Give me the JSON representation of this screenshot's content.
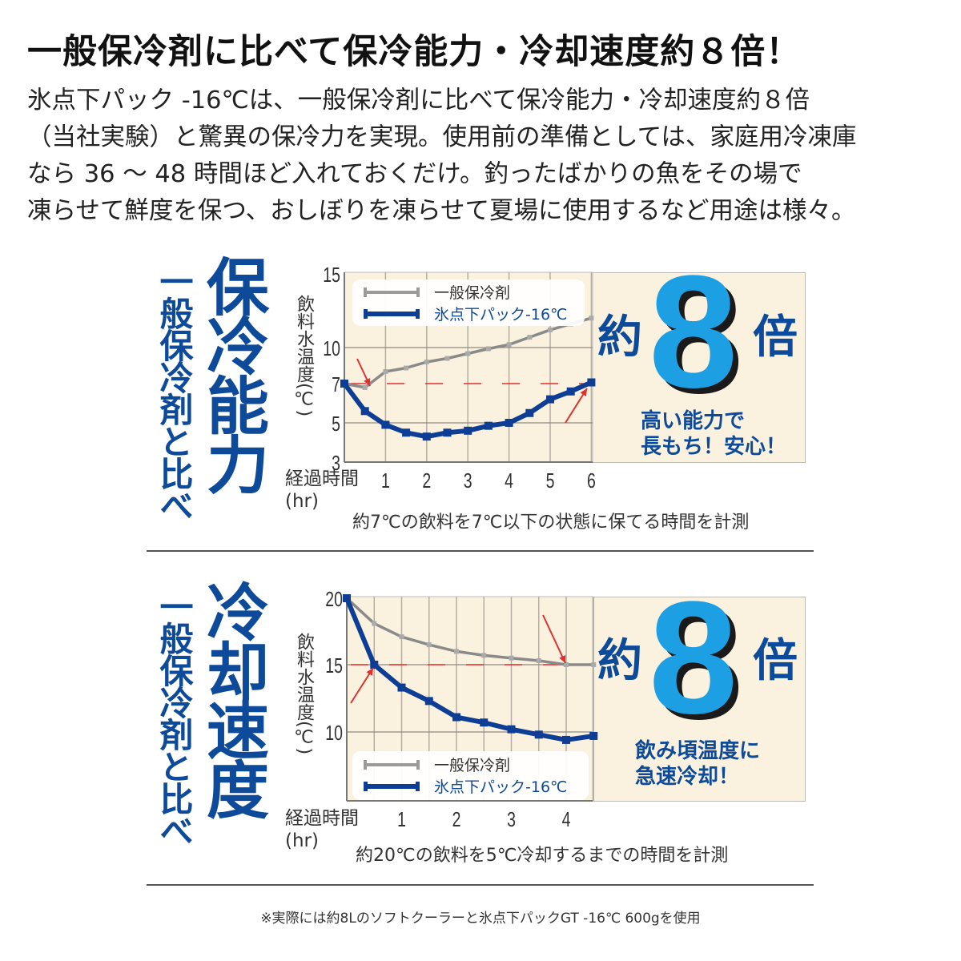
{
  "header": {
    "title": "一般保冷剤に比べて保冷能力・冷却速度約８倍！",
    "paragraph": [
      "氷点下パック -16℃は、一般保冷剤に比べて保冷能力・冷却速度約８倍",
      "（当社実験）と驚異の保冷力を実現。使用前の準備としては、家庭用冷凍庫",
      "なら 36 ～ 48 時間ほど入れておくだけ。釣ったばかりの魚をその場で",
      "凍らせて鮮度を保つ、おしぼりを凍らせて夏場に使用するなど用途は様々。"
    ]
  },
  "sections": [
    {
      "title": "保冷能力",
      "subtitle": "一般保冷剤と比べ",
      "badge": {
        "prefix": "約",
        "number": "8",
        "suffix": "倍",
        "caption": [
          "高い能力で",
          "長もち！安心！"
        ]
      },
      "ylabel": "飲料水温度(℃)",
      "xlabel": "経過時間",
      "xunit": "(hr)",
      "caption": "約7℃の飲料を7℃以下の状態に保てる時間を計測",
      "legend": [
        "一般保冷剤",
        "氷点下パック-16℃"
      ]
    },
    {
      "title": "冷却速度",
      "subtitle": "一般保冷剤と比べ",
      "badge": {
        "prefix": "約",
        "number": "8",
        "suffix": "倍",
        "caption": [
          "飲み頃温度に",
          "急速冷却！"
        ]
      },
      "ylabel": "飲料水温度(℃)",
      "xlabel": "経過時間",
      "xunit": "(hr)",
      "caption": "約20℃の飲料を5℃冷却するまでの時間を計測",
      "legend": [
        "一般保冷剤",
        "氷点下パック-16℃"
      ]
    }
  ],
  "footnote": "※実際には約8Lのソフトクーラーと氷点下パックGT -16℃ 600gを使用",
  "colors": {
    "gray_series": "#8a8a8a",
    "blue_series": "#0d3d94",
    "threshold": "#e03030",
    "panel": "#fbf1df",
    "accent": "#1d9fe3",
    "navy": "#0d4a9a"
  },
  "chart_data": [
    {
      "type": "line",
      "title": "保冷能力",
      "xlabel": "経過時間 (hr)",
      "ylabel": "飲料水温度(℃)",
      "x": [
        0,
        0.5,
        1,
        1.5,
        2,
        2.5,
        3,
        3.5,
        4,
        4.5,
        5,
        5.5,
        6
      ],
      "xticks": [
        1,
        2,
        3,
        4,
        5,
        6
      ],
      "yticks": [
        3,
        5,
        7,
        10,
        15
      ],
      "ylim": [
        3,
        15
      ],
      "xlim": [
        0,
        6
      ],
      "threshold": 7,
      "series": [
        {
          "name": "一般保冷剤",
          "values": [
            7,
            6.8,
            8.0,
            8.3,
            8.8,
            9.1,
            9.5,
            9.9,
            10.2,
            10.7,
            11.2,
            11.6,
            12.0
          ]
        },
        {
          "name": "氷点下パック-16℃",
          "values": [
            7,
            5.6,
            4.9,
            4.5,
            4.3,
            4.5,
            4.6,
            4.85,
            5.0,
            5.5,
            6.2,
            6.6,
            7.1
          ]
        }
      ],
      "legend": "top-left"
    },
    {
      "type": "line",
      "title": "冷却速度",
      "xlabel": "経過時間 (hr)",
      "ylabel": "飲料水温度(℃)",
      "x": [
        0,
        0.5,
        1,
        1.5,
        2,
        2.5,
        3,
        3.5,
        4,
        4.5
      ],
      "xticks": [
        1,
        2,
        3,
        4
      ],
      "yticks": [
        10,
        15,
        20
      ],
      "ylim": [
        4.8,
        20
      ],
      "xlim": [
        0,
        4.5
      ],
      "threshold": 15,
      "series": [
        {
          "name": "一般保冷剤",
          "values": [
            20,
            18.1,
            17.1,
            16.5,
            16.0,
            15.7,
            15.5,
            15.3,
            15.0,
            15.0
          ]
        },
        {
          "name": "氷点下パック-16℃",
          "values": [
            20,
            15.0,
            13.3,
            12.3,
            11.1,
            10.7,
            10.2,
            9.8,
            9.4,
            9.7
          ]
        }
      ],
      "legend": "bottom-left"
    }
  ]
}
